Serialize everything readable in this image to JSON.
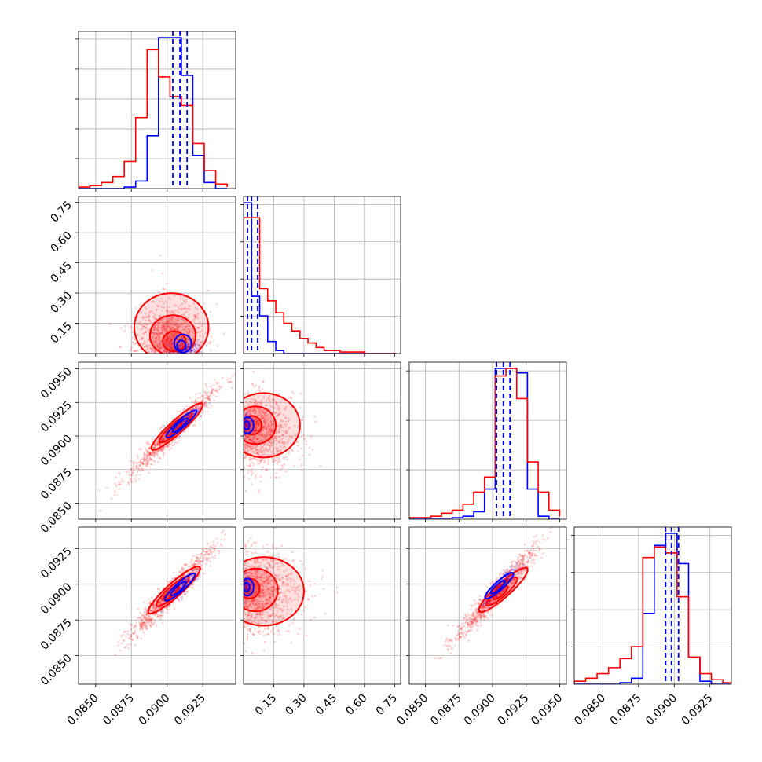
{
  "chart_data": {
    "type": "corner",
    "grid": true,
    "colors": {
      "blue": "#0000ff",
      "red": "#ff0000"
    },
    "series": [
      {
        "color": "#0000ff"
      },
      {
        "color": "#ff0000"
      }
    ],
    "params": [
      {
        "range": [
          0.0838,
          0.0948
        ],
        "tick_values": [
          0.085,
          0.0875,
          0.09,
          0.0925
        ],
        "tick_labels": [
          "0.0850",
          "0.0875",
          "0.0900",
          "0.0925"
        ],
        "diag_ticks": 5
      },
      {
        "range": [
          0.0,
          0.78
        ],
        "tick_values": [
          0.15,
          0.3,
          0.45,
          0.6,
          0.75
        ],
        "tick_labels": [
          "0.15",
          "0.30",
          "0.45",
          "0.60",
          "0.75"
        ]
      },
      {
        "range": [
          0.0838,
          0.0955
        ],
        "tick_values": [
          0.085,
          0.0875,
          0.09,
          0.0925,
          0.095
        ],
        "tick_labels": [
          "0.0850",
          "0.0875",
          "0.0900",
          "0.0925",
          "0.0950"
        ],
        "diag_ticks": 3
      },
      {
        "range": [
          0.083,
          0.094
        ],
        "tick_values": [
          0.085,
          0.0875,
          0.09,
          0.0925
        ],
        "tick_labels": [
          "0.0850",
          "0.0875",
          "0.0900",
          "0.0925"
        ],
        "diag_ticks": 4
      }
    ],
    "histograms": [
      {
        "param": 0,
        "bins": [
          0.0838,
          0.0846,
          0.0854,
          0.0862,
          0.087,
          0.0878,
          0.0886,
          0.0894,
          0.0902,
          0.091,
          0.0918,
          0.0926,
          0.0934,
          0.0942
        ],
        "blue": [
          0,
          0,
          0,
          0,
          0.01,
          0.05,
          0.35,
          1.0,
          1.0,
          0.75,
          0.22,
          0.04,
          0,
          0
        ],
        "red": [
          0.01,
          0.02,
          0.04,
          0.08,
          0.18,
          0.47,
          0.92,
          0.74,
          0.61,
          0.55,
          0.3,
          0.12,
          0.03,
          0.01
        ],
        "blue_quantiles": [
          0.0904,
          0.0909,
          0.0914
        ]
      },
      {
        "param": 1,
        "bins": [
          0.0,
          0.04,
          0.08,
          0.12,
          0.16,
          0.2,
          0.24,
          0.28,
          0.32,
          0.36,
          0.4,
          0.44,
          0.48,
          0.52,
          0.56,
          0.6,
          0.64,
          0.68,
          0.72,
          0.76
        ],
        "blue": [
          1.0,
          0.38,
          0.25,
          0.08,
          0.02,
          0,
          0,
          0,
          0,
          0,
          0,
          0,
          0,
          0,
          0,
          0,
          0,
          0,
          0
        ],
        "red": [
          0.9,
          0.9,
          0.43,
          0.35,
          0.27,
          0.2,
          0.15,
          0.1,
          0.07,
          0.04,
          0.02,
          0.02,
          0.01,
          0.01,
          0.01,
          0,
          0,
          0,
          0
        ],
        "blue_quantiles": [
          0.02,
          0.04,
          0.07
        ]
      },
      {
        "param": 2,
        "bins": [
          0.0838,
          0.0846,
          0.0854,
          0.0862,
          0.087,
          0.0878,
          0.0886,
          0.0894,
          0.0902,
          0.091,
          0.0918,
          0.0926,
          0.0934,
          0.0942,
          0.095
        ],
        "blue": [
          0,
          0,
          0,
          0,
          0.01,
          0.02,
          0.05,
          0.2,
          1.0,
          1.0,
          0.97,
          0.2,
          0.02,
          0,
          0
        ],
        "red": [
          0.01,
          0.01,
          0.02,
          0.04,
          0.06,
          0.1,
          0.18,
          0.28,
          0.95,
          1.0,
          0.8,
          0.38,
          0.18,
          0.06,
          0.02
        ],
        "blue_quantiles": [
          0.0903,
          0.0908,
          0.0913
        ]
      },
      {
        "param": 3,
        "bins": [
          0.083,
          0.0838,
          0.0846,
          0.0854,
          0.0862,
          0.087,
          0.0878,
          0.0886,
          0.0894,
          0.0902,
          0.091,
          0.0918,
          0.0926,
          0.0934,
          0.094
        ],
        "blue": [
          0,
          0,
          0,
          0,
          0.01,
          0.04,
          0.47,
          0.92,
          1.0,
          0.8,
          0.18,
          0.02,
          0,
          0
        ],
        "red": [
          0.02,
          0.04,
          0.07,
          0.11,
          0.17,
          0.25,
          0.84,
          0.91,
          0.87,
          0.58,
          0.18,
          0.07,
          0.03,
          0.01
        ],
        "blue_quantiles": [
          0.0894,
          0.0898,
          0.0903
        ]
      }
    ],
    "scatter_panels": [
      {
        "x_param": 0,
        "y_param": 1,
        "red": {
          "center": [
            0.0902,
            0.08
          ],
          "spread": [
            0.0012,
            0.12
          ],
          "corr": 0.0,
          "count": 900
        },
        "blue": {
          "center": [
            0.0912,
            0.04
          ],
          "spread": [
            0.0006,
            0.03
          ],
          "corr": 0.0,
          "count": 250
        },
        "red_contours": [
          {
            "center": [
              0.0903,
              0.13
            ],
            "radius": [
              0.0026,
              0.17
            ],
            "angle": 0
          },
          {
            "center": [
              0.0904,
              0.09
            ],
            "radius": [
              0.0016,
              0.1
            ],
            "angle": 0
          },
          {
            "center": [
              0.0905,
              0.06
            ],
            "radius": [
              0.0008,
              0.05
            ],
            "angle": 0
          }
        ],
        "blue_contours": [
          {
            "center": [
              0.0911,
              0.05
            ],
            "radius": [
              0.0006,
              0.045
            ],
            "angle": 0
          },
          {
            "center": [
              0.091,
              0.04
            ],
            "radius": [
              0.0003,
              0.025
            ],
            "angle": 0
          }
        ]
      },
      {
        "x_param": 0,
        "y_param": 2,
        "red": {
          "center": [
            0.0903,
            0.0902
          ],
          "spread": [
            0.0015,
            0.0016
          ],
          "corr": 0.96,
          "count": 900
        },
        "blue": {
          "center": [
            0.091,
            0.0909
          ],
          "spread": [
            0.0006,
            0.0006
          ],
          "corr": 0.9,
          "count": 250
        },
        "red_contours": [
          {
            "center": [
              0.0907,
              0.0907
            ],
            "radius": [
              0.0024,
              0.0005
            ],
            "angle": 42
          },
          {
            "center": [
              0.0906,
              0.0906
            ],
            "radius": [
              0.0015,
              0.00035
            ],
            "angle": 42
          },
          {
            "center": [
              0.0905,
              0.0905
            ],
            "radius": [
              0.0007,
              0.0002
            ],
            "angle": 42
          }
        ],
        "blue_contours": [
          {
            "center": [
              0.091,
              0.0909
            ],
            "radius": [
              0.0014,
              0.0003
            ],
            "angle": 42
          },
          {
            "center": [
              0.0909,
              0.0908
            ],
            "radius": [
              0.0007,
              0.00018
            ],
            "angle": 42
          }
        ]
      },
      {
        "x_param": 1,
        "y_param": 2,
        "red": {
          "center": [
            0.12,
            0.0902
          ],
          "spread": [
            0.12,
            0.0014
          ],
          "corr": 0.0,
          "count": 900
        },
        "blue": {
          "center": [
            0.02,
            0.0908
          ],
          "spread": [
            0.02,
            0.0004
          ],
          "corr": 0.0,
          "count": 200
        },
        "red_contours": [
          {
            "center": [
              0.1,
              0.0908
            ],
            "radius": [
              0.18,
              0.0024
            ],
            "angle": 0
          },
          {
            "center": [
              0.06,
              0.0908
            ],
            "radius": [
              0.1,
              0.0014
            ],
            "angle": 0
          },
          {
            "center": [
              0.04,
              0.0908
            ],
            "radius": [
              0.05,
              0.0007
            ],
            "angle": 0
          }
        ],
        "blue_contours": [
          {
            "center": [
              0.02,
              0.0908
            ],
            "radius": [
              0.03,
              0.0006
            ],
            "angle": 0
          },
          {
            "center": [
              0.015,
              0.0908
            ],
            "radius": [
              0.015,
              0.0003
            ],
            "angle": 0
          }
        ]
      },
      {
        "x_param": 0,
        "y_param": 3,
        "red": {
          "center": [
            0.0902,
            0.0893
          ],
          "spread": [
            0.0015,
            0.0016
          ],
          "corr": 0.96,
          "count": 900
        },
        "blue": {
          "center": [
            0.091,
            0.0898
          ],
          "spread": [
            0.0006,
            0.0006
          ],
          "corr": 0.9,
          "count": 250
        },
        "red_contours": [
          {
            "center": [
              0.0905,
              0.0896
            ],
            "radius": [
              0.0024,
              0.0005
            ],
            "angle": 42
          },
          {
            "center": [
              0.0904,
              0.0895
            ],
            "radius": [
              0.0015,
              0.00035
            ],
            "angle": 42
          },
          {
            "center": [
              0.0903,
              0.0894
            ],
            "radius": [
              0.0007,
              0.0002
            ],
            "angle": 42
          }
        ],
        "blue_contours": [
          {
            "center": [
              0.0909,
              0.0898
            ],
            "radius": [
              0.0014,
              0.0003
            ],
            "angle": 42
          },
          {
            "center": [
              0.0908,
              0.0897
            ],
            "radius": [
              0.0007,
              0.00018
            ],
            "angle": 42
          }
        ]
      },
      {
        "x_param": 1,
        "y_param": 3,
        "red": {
          "center": [
            0.13,
            0.0893
          ],
          "spread": [
            0.13,
            0.0014
          ],
          "corr": 0.0,
          "count": 900
        },
        "blue": {
          "center": [
            0.02,
            0.0898
          ],
          "spread": [
            0.02,
            0.0004
          ],
          "corr": 0.0,
          "count": 200
        },
        "red_contours": [
          {
            "center": [
              0.1,
              0.0895
            ],
            "radius": [
              0.2,
              0.0024
            ],
            "angle": 0
          },
          {
            "center": [
              0.06,
              0.0896
            ],
            "radius": [
              0.11,
              0.0015
            ],
            "angle": 0
          },
          {
            "center": [
              0.03,
              0.0897
            ],
            "radius": [
              0.05,
              0.0007
            ],
            "angle": 0
          }
        ],
        "blue_contours": [
          {
            "center": [
              0.02,
              0.0898
            ],
            "radius": [
              0.03,
              0.0006
            ],
            "angle": 0
          },
          {
            "center": [
              0.015,
              0.0898
            ],
            "radius": [
              0.015,
              0.0003
            ],
            "angle": 0
          }
        ]
      },
      {
        "x_param": 2,
        "y_param": 3,
        "red": {
          "center": [
            0.0902,
            0.0893
          ],
          "spread": [
            0.0015,
            0.0016
          ],
          "corr": 0.96,
          "count": 900
        },
        "blue": {
          "center": [
            0.0906,
            0.0899
          ],
          "spread": [
            0.0006,
            0.0006
          ],
          "corr": 0.9,
          "count": 300
        },
        "red_contours": [
          {
            "center": [
              0.0908,
              0.0896
            ],
            "radius": [
              0.0024,
              0.0005
            ],
            "angle": 42
          },
          {
            "center": [
              0.0907,
              0.0895
            ],
            "radius": [
              0.0015,
              0.00035
            ],
            "angle": 42
          },
          {
            "center": [
              0.0906,
              0.0894
            ],
            "radius": [
              0.0007,
              0.0002
            ],
            "angle": 42
          }
        ],
        "blue_contours": [
          {
            "center": [
              0.0905,
              0.0899
            ],
            "radius": [
              0.0014,
              0.0003
            ],
            "angle": 42
          },
          {
            "center": [
              0.0904,
              0.0898
            ],
            "radius": [
              0.0007,
              0.00018
            ],
            "angle": 42
          }
        ]
      }
    ]
  }
}
